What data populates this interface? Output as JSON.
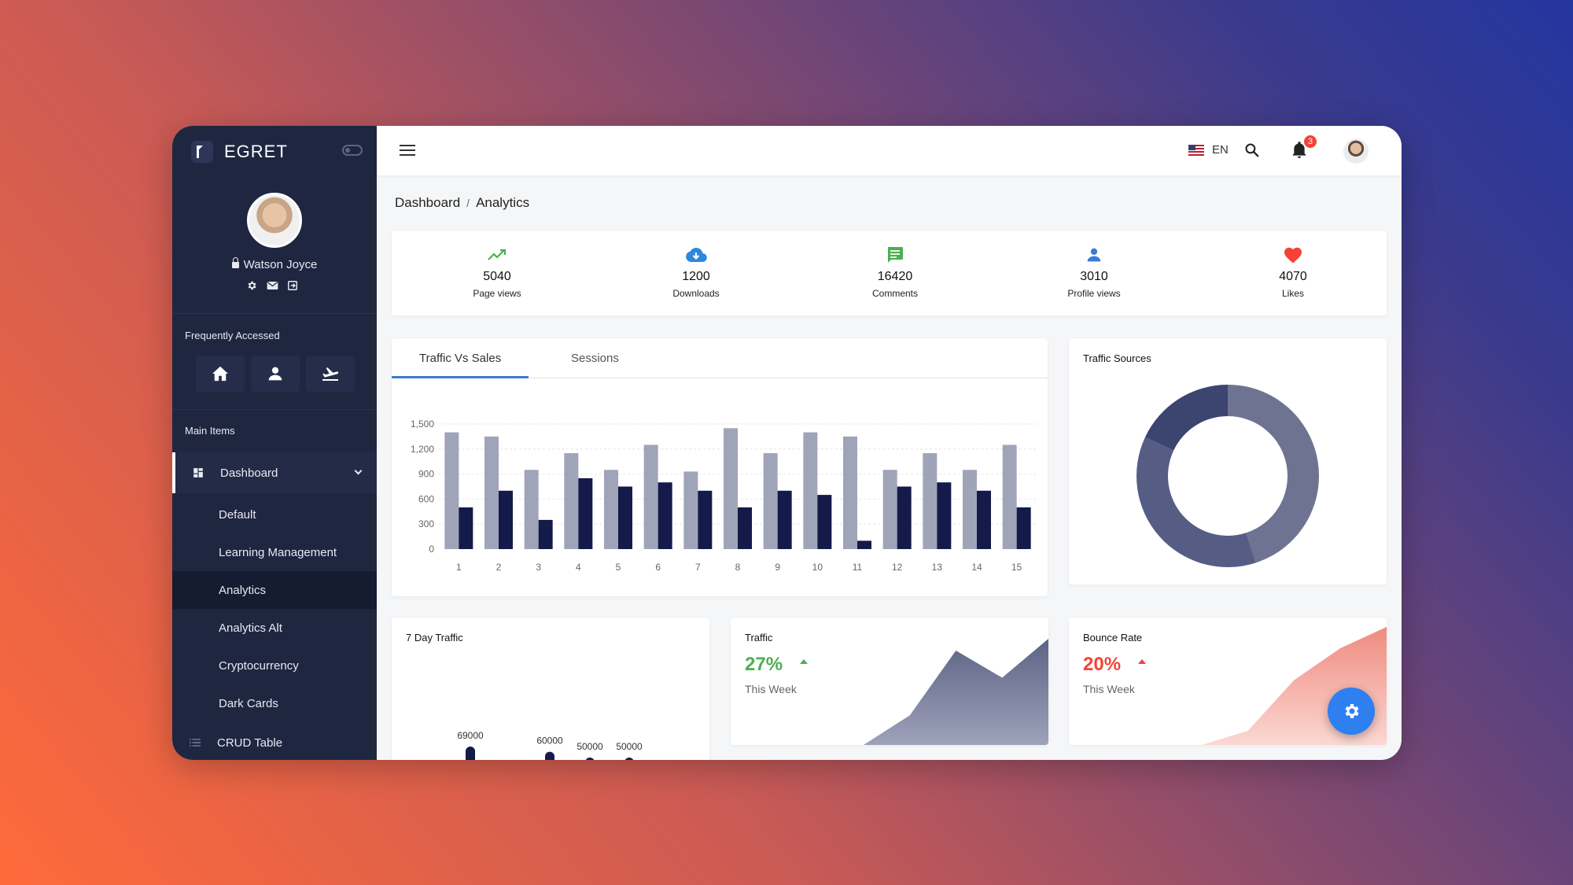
{
  "app": {
    "brand": "EGRET"
  },
  "profile": {
    "name": "Watson Joyce"
  },
  "sidebar": {
    "frequent_label": "Frequently Accessed",
    "main_label": "Main Items",
    "dashboard_label": "Dashboard",
    "sub_items": [
      "Default",
      "Learning Management",
      "Analytics",
      "Analytics Alt",
      "Cryptocurrency",
      "Dark Cards"
    ],
    "active_sub": "Analytics",
    "crud_label": "CRUD Table"
  },
  "topbar": {
    "lang": "EN",
    "notification_count": "3"
  },
  "breadcrumb": {
    "root": "Dashboard",
    "sep": "/",
    "current": "Analytics"
  },
  "stats": [
    {
      "icon": "trending-up-icon",
      "value": "5040",
      "label": "Page views",
      "color": "#4caf50"
    },
    {
      "icon": "cloud-download-icon",
      "value": "1200",
      "label": "Downloads",
      "color": "#2e86de"
    },
    {
      "icon": "comment-icon",
      "value": "16420",
      "label": "Comments",
      "color": "#4caf50"
    },
    {
      "icon": "person-icon",
      "value": "3010",
      "label": "Profile views",
      "color": "#3a7bd5"
    },
    {
      "icon": "heart-icon",
      "value": "4070",
      "label": "Likes",
      "color": "#f44336"
    }
  ],
  "tabs": [
    "Traffic Vs Sales",
    "Sessions"
  ],
  "cards": {
    "traffic_sources": "Traffic Sources",
    "seven_day": "7 Day Traffic",
    "traffic": {
      "title": "Traffic",
      "pct": "27%",
      "sub": "This Week",
      "color": "#4caf50"
    },
    "bounce": {
      "title": "Bounce Rate",
      "pct": "20%",
      "sub": "This Week",
      "color": "#f44336"
    }
  },
  "chart_data": [
    {
      "type": "bar",
      "categories": [
        "1",
        "2",
        "3",
        "4",
        "5",
        "6",
        "7",
        "8",
        "9",
        "10",
        "11",
        "12",
        "13",
        "14",
        "15"
      ],
      "series": [
        {
          "values": [
            1400,
            1350,
            950,
            1150,
            950,
            1250,
            930,
            1450,
            1150,
            1400,
            1350,
            950,
            1150,
            950,
            1250
          ],
          "color": "#a0a4b8"
        },
        {
          "values": [
            500,
            700,
            350,
            850,
            750,
            800,
            700,
            500,
            700,
            650,
            100,
            750,
            800,
            700,
            500
          ],
          "color": "#141a4a"
        }
      ],
      "ylim": [
        0,
        1500
      ],
      "yticks": [
        "1,500",
        "1,200",
        "900",
        "600",
        "300",
        "0"
      ],
      "grid": true
    },
    {
      "type": "pie",
      "values": [
        45,
        37,
        18
      ],
      "colors": [
        "#6e7391",
        "#555d85",
        "#3c4470"
      ]
    },
    {
      "type": "bar",
      "values": [
        69000,
        60000,
        50000,
        50000
      ],
      "labels": [
        "69000",
        "60000",
        "50000",
        "50000"
      ],
      "color": "#141a4a"
    },
    {
      "type": "area",
      "values": [
        0,
        0,
        25,
        80,
        57,
        90
      ],
      "color": "#5d6384"
    },
    {
      "type": "area",
      "values": [
        0,
        0,
        12,
        55,
        82,
        100
      ],
      "color": "#ef8b80"
    }
  ]
}
